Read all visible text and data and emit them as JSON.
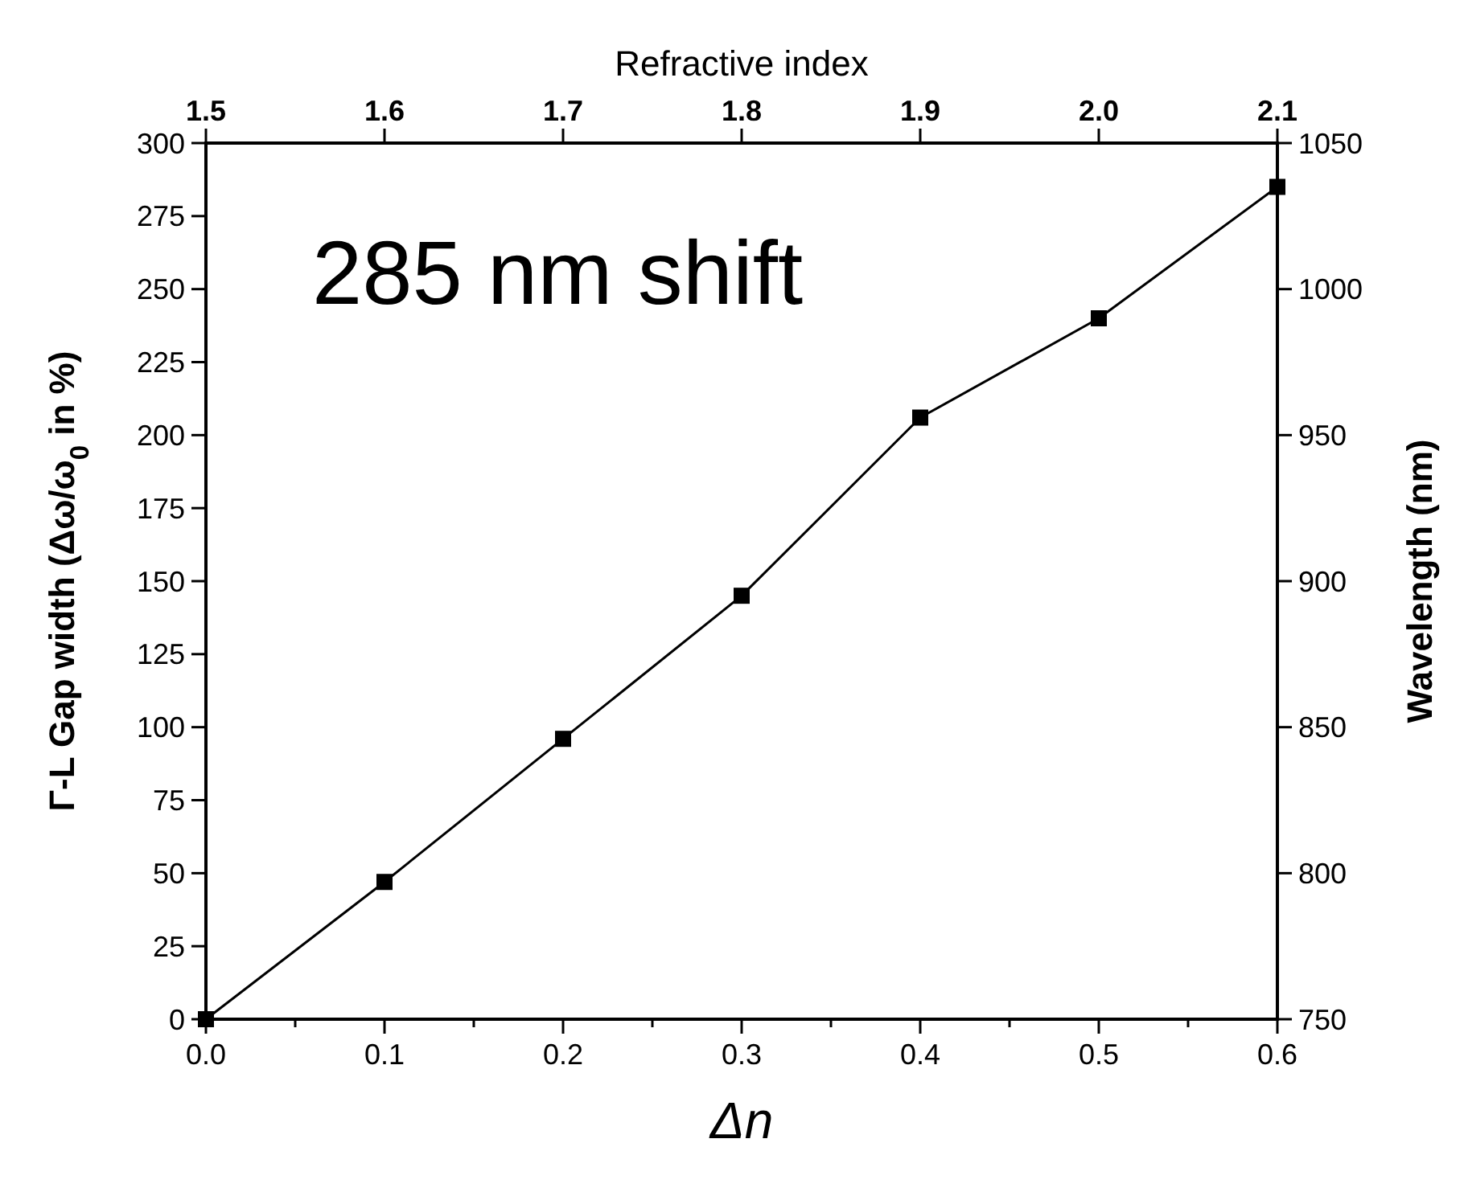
{
  "chart_data": {
    "type": "line",
    "xlabel": "Δn",
    "ylabel": "Γ-L Gap width (Δω/ω$_{0}$ in %)",
    "y2label": "Wavelength (nm)",
    "x2label": "Refractive index",
    "annotations": [
      "285 nm shift"
    ],
    "x": [
      0,
      0.1,
      0.2,
      0.3,
      0.4,
      0.5,
      0.6
    ],
    "series": [
      {
        "color": "#000000",
        "values": [
          0,
          47,
          96,
          145,
          206,
          240,
          285
        ]
      }
    ],
    "xlim": [
      0,
      0.6
    ],
    "xticks": [
      {
        "value": 0,
        "label": "0.0"
      },
      {
        "value": 0.05,
        "label": null
      },
      0.1,
      {
        "value": 0.15,
        "label": null
      },
      0.2,
      {
        "value": 0.25,
        "label": null
      },
      0.3,
      {
        "value": 0.35,
        "label": null
      },
      0.4,
      {
        "value": 0.45,
        "label": null
      },
      0.5,
      {
        "value": 0.55,
        "label": null
      },
      0.6
    ],
    "x2lim": [
      1.5,
      2.1
    ],
    "x2ticks": [
      1.5,
      1.6,
      1.7,
      1.8,
      1.9,
      {
        "value": 2.0,
        "label": "2.0"
      },
      2.1
    ],
    "ylim": [
      0,
      300
    ],
    "yticks": [
      0,
      25,
      50,
      75,
      100,
      125,
      150,
      175,
      200,
      225,
      250,
      275,
      300
    ],
    "y2lim": [
      750,
      1050
    ],
    "y2ticks": [
      750,
      800,
      850,
      900,
      950,
      1000,
      1050
    ],
    "marker": "square",
    "line_style": "solid",
    "grid": false
  }
}
